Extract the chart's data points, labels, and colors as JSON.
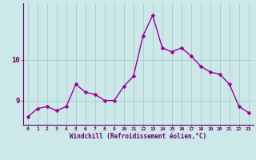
{
  "x": [
    0,
    1,
    2,
    3,
    4,
    5,
    6,
    7,
    8,
    9,
    10,
    11,
    12,
    13,
    14,
    15,
    16,
    17,
    18,
    19,
    20,
    21,
    22,
    23
  ],
  "y": [
    8.6,
    8.8,
    8.85,
    8.75,
    8.85,
    9.4,
    9.2,
    9.15,
    9.0,
    9.0,
    9.35,
    9.6,
    10.6,
    11.1,
    10.3,
    10.2,
    10.3,
    10.1,
    9.85,
    9.7,
    9.65,
    9.4,
    8.85,
    8.7
  ],
  "line_color": "#990099",
  "marker_color": "#990099",
  "bg_color": "#cce8e8",
  "grid_color": "#aacccc",
  "axis_color": "#660066",
  "xlabel": "Windchill (Refroidissement éolien,°C)",
  "xlim": [
    -0.5,
    23.5
  ],
  "ylim": [
    8.4,
    11.4
  ],
  "yticks": [
    9,
    10
  ],
  "xticks": [
    0,
    1,
    2,
    3,
    4,
    5,
    6,
    7,
    8,
    9,
    10,
    11,
    12,
    13,
    14,
    15,
    16,
    17,
    18,
    19,
    20,
    21,
    22,
    23
  ],
  "figsize": [
    3.2,
    2.0
  ],
  "dpi": 100,
  "linewidth": 1.0,
  "markersize": 2.5
}
